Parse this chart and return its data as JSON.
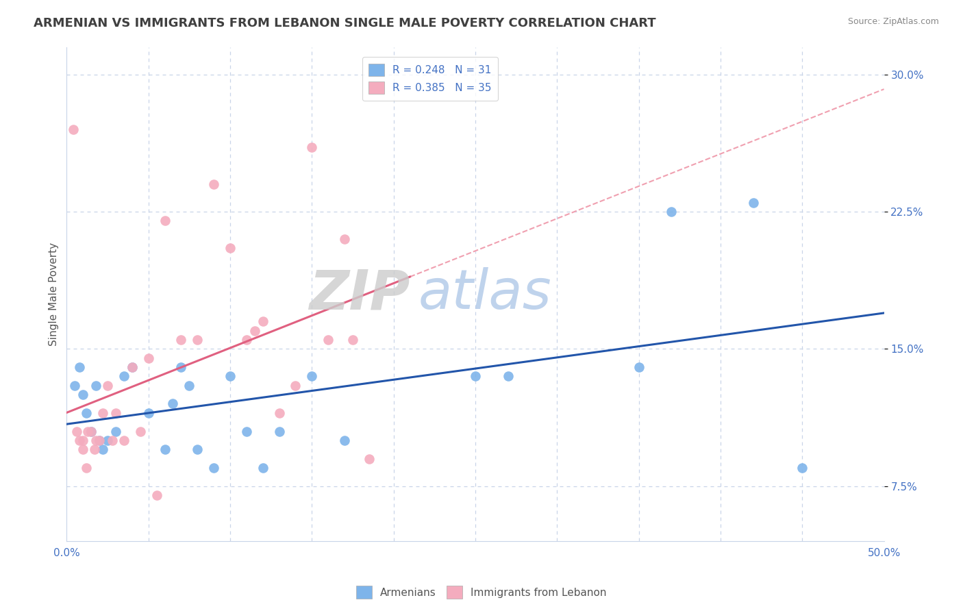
{
  "title": "ARMENIAN VS IMMIGRANTS FROM LEBANON SINGLE MALE POVERTY CORRELATION CHART",
  "source": "Source: ZipAtlas.com",
  "ylabel": "Single Male Poverty",
  "xlim": [
    0.0,
    0.5
  ],
  "ylim": [
    0.045,
    0.315
  ],
  "legend_label1": "R = 0.248   N = 31",
  "legend_label2": "R = 0.385   N = 35",
  "armenian_color": "#7EB4EA",
  "lebanon_color": "#F4ACBE",
  "trendline_blue": "#2255AA",
  "trendline_pink": "#E06080",
  "trendline_dash_color": "#F0A0B0",
  "watermark_zip": "ZIP",
  "watermark_atlas": "atlas",
  "armenian_x": [
    0.005,
    0.008,
    0.01,
    0.012,
    0.015,
    0.018,
    0.02,
    0.022,
    0.025,
    0.03,
    0.035,
    0.04,
    0.05,
    0.06,
    0.065,
    0.07,
    0.075,
    0.08,
    0.09,
    0.1,
    0.11,
    0.12,
    0.13,
    0.15,
    0.17,
    0.25,
    0.27,
    0.35,
    0.37,
    0.42,
    0.45
  ],
  "armenian_y": [
    0.13,
    0.14,
    0.125,
    0.115,
    0.105,
    0.13,
    0.1,
    0.095,
    0.1,
    0.105,
    0.135,
    0.14,
    0.115,
    0.095,
    0.12,
    0.14,
    0.13,
    0.095,
    0.085,
    0.135,
    0.105,
    0.085,
    0.105,
    0.135,
    0.1,
    0.135,
    0.135,
    0.14,
    0.225,
    0.23,
    0.085
  ],
  "lebanon_x": [
    0.004,
    0.006,
    0.008,
    0.01,
    0.01,
    0.012,
    0.013,
    0.015,
    0.017,
    0.018,
    0.02,
    0.022,
    0.025,
    0.028,
    0.03,
    0.035,
    0.04,
    0.045,
    0.05,
    0.055,
    0.06,
    0.07,
    0.08,
    0.09,
    0.1,
    0.11,
    0.115,
    0.12,
    0.13,
    0.14,
    0.15,
    0.16,
    0.17,
    0.175,
    0.185
  ],
  "lebanon_y": [
    0.27,
    0.105,
    0.1,
    0.095,
    0.1,
    0.085,
    0.105,
    0.105,
    0.095,
    0.1,
    0.1,
    0.115,
    0.13,
    0.1,
    0.115,
    0.1,
    0.14,
    0.105,
    0.145,
    0.07,
    0.22,
    0.155,
    0.155,
    0.24,
    0.205,
    0.155,
    0.16,
    0.165,
    0.115,
    0.13,
    0.26,
    0.155,
    0.21,
    0.155,
    0.09
  ],
  "background_color": "#FFFFFF",
  "grid_color": "#C8D4E8",
  "axis_color": "#4472C4",
  "title_color": "#404040",
  "title_fontsize": 13,
  "legend_R_color": "#4472C4"
}
